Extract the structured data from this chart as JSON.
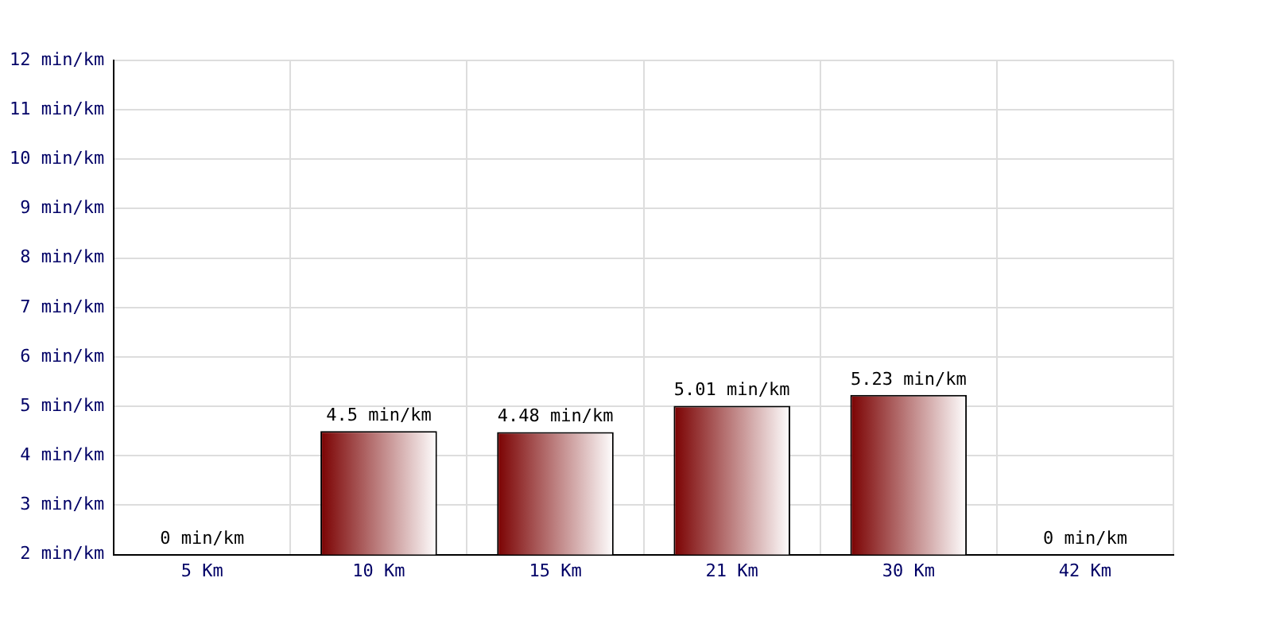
{
  "chart_data": {
    "type": "bar",
    "categories": [
      "5 Km",
      "10 Km",
      "15 Km",
      "21 Km",
      "30 Km",
      "42 Km"
    ],
    "values": [
      null,
      4.5,
      4.48,
      5.01,
      5.23,
      null
    ],
    "value_labels": [
      "0 min/km",
      "4.5 min/km",
      "4.48 min/km",
      "5.01 min/km",
      "5.23 min/km",
      "0 min/km"
    ],
    "color": "#7a0000",
    "ylim": [
      2,
      12
    ],
    "yticks": [
      {
        "value": 2,
        "label": "2 min/km"
      },
      {
        "value": 3,
        "label": "3 min/km"
      },
      {
        "value": 4,
        "label": "4 min/km"
      },
      {
        "value": 5,
        "label": "5 min/km"
      },
      {
        "value": 6,
        "label": "6 min/km"
      },
      {
        "value": 7,
        "label": "7 min/km"
      },
      {
        "value": 8,
        "label": "8 min/km"
      },
      {
        "value": 9,
        "label": "9 min/km"
      },
      {
        "value": 10,
        "label": "10 min/km"
      },
      {
        "value": 11,
        "label": "11 min/km"
      },
      {
        "value": 12,
        "label": "12 min/km"
      }
    ],
    "grid": true,
    "legend": false
  }
}
